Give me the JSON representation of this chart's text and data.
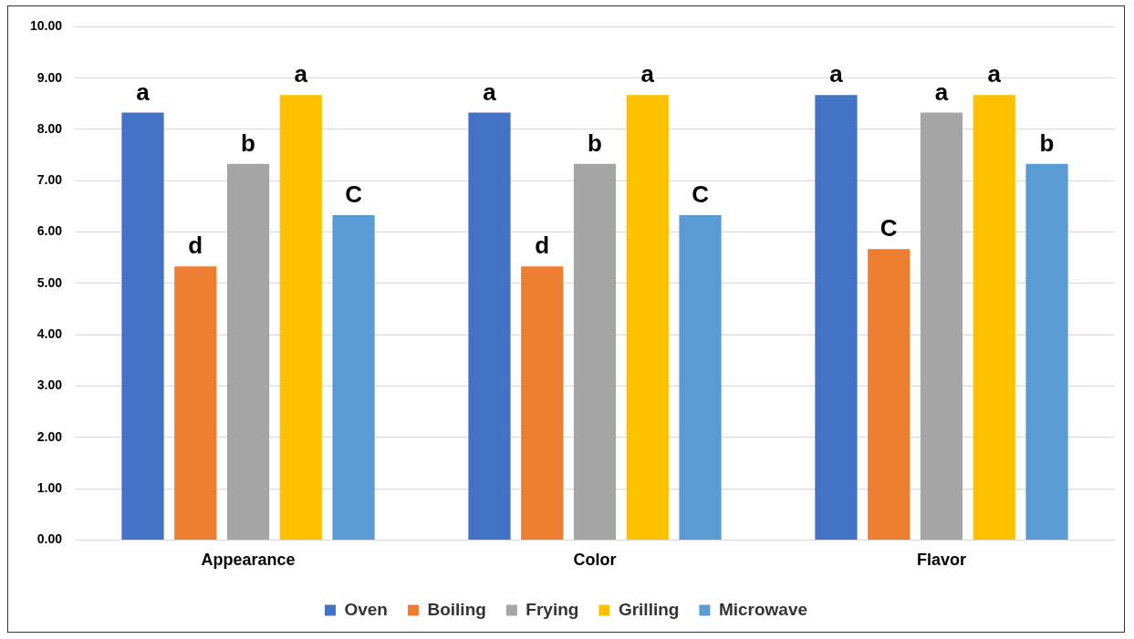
{
  "chart_data": {
    "type": "bar",
    "categories": [
      "Appearance",
      "Color",
      "Flavor"
    ],
    "series": [
      {
        "name": "Oven",
        "color": "#4472c4",
        "values": [
          8.33,
          8.33,
          8.67
        ],
        "value_labels": [
          "a",
          "a",
          "a"
        ]
      },
      {
        "name": "Boiling",
        "color": "#ed7d31",
        "values": [
          5.33,
          5.33,
          5.67
        ],
        "value_labels": [
          "d",
          "d",
          "C"
        ]
      },
      {
        "name": "Frying",
        "color": "#a5a5a5",
        "values": [
          7.33,
          7.33,
          8.33
        ],
        "value_labels": [
          "b",
          "b",
          "a"
        ]
      },
      {
        "name": "Grilling",
        "color": "#ffc000",
        "values": [
          8.67,
          8.67,
          8.67
        ],
        "value_labels": [
          "a",
          "a",
          "a"
        ]
      },
      {
        "name": "Microwave",
        "color": "#5b9bd5",
        "values": [
          6.33,
          6.33,
          7.33
        ],
        "value_labels": [
          "C",
          "C",
          "b"
        ]
      }
    ],
    "ylim": [
      0,
      10
    ],
    "yticks": [
      {
        "value": 0,
        "label": "0.00"
      },
      {
        "value": 1,
        "label": "1.00"
      },
      {
        "value": 2,
        "label": "2.00"
      },
      {
        "value": 3,
        "label": "3.00"
      },
      {
        "value": 4,
        "label": "4.00"
      },
      {
        "value": 5,
        "label": "5.00"
      },
      {
        "value": 6,
        "label": "6.00"
      },
      {
        "value": 7,
        "label": "7.00"
      },
      {
        "value": 8,
        "label": "8.00"
      },
      {
        "value": 9,
        "label": "9.00"
      },
      {
        "value": 10,
        "label": "10.00"
      }
    ],
    "grid": "y",
    "legend": "bottom"
  }
}
